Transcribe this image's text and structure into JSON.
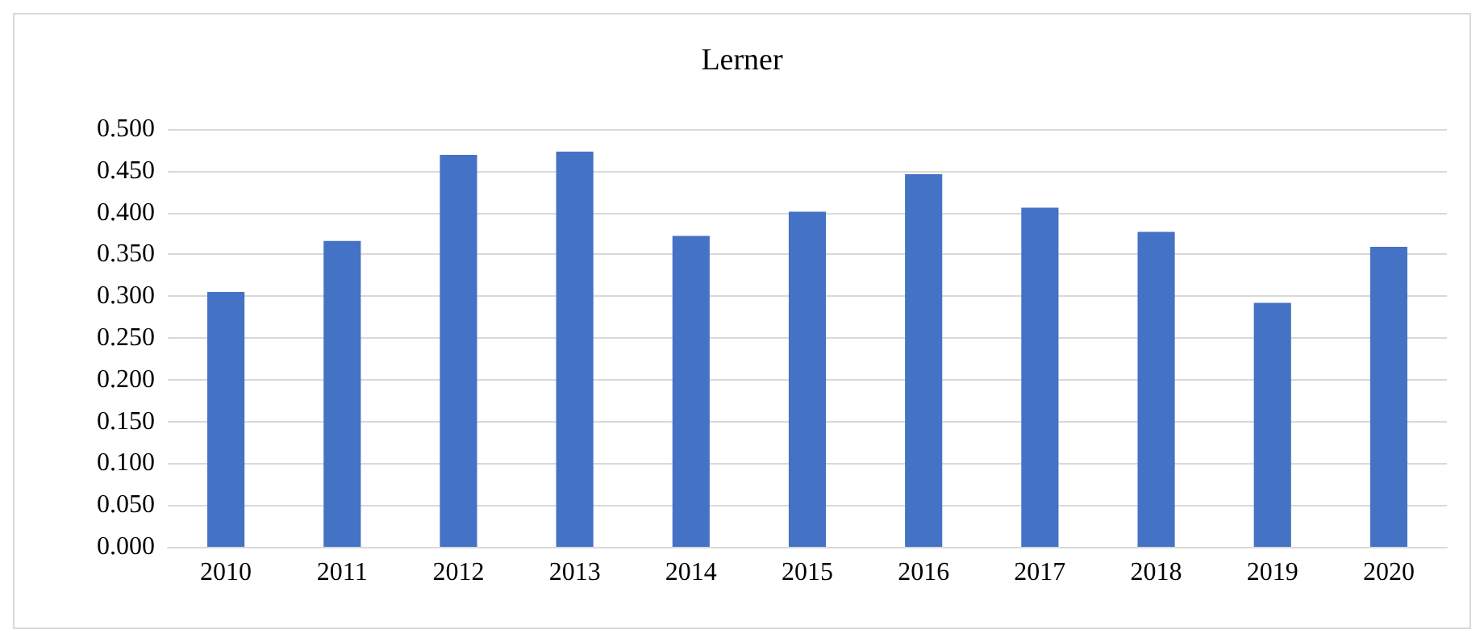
{
  "chart_data": {
    "type": "bar",
    "title": "Lerner",
    "categories": [
      "2010",
      "2011",
      "2012",
      "2013",
      "2014",
      "2015",
      "2016",
      "2017",
      "2018",
      "2019",
      "2020"
    ],
    "values": [
      0.305,
      0.366,
      0.469,
      0.473,
      0.372,
      0.401,
      0.446,
      0.406,
      0.377,
      0.292,
      0.359
    ],
    "color": "#4472c4",
    "ylim": [
      0,
      0.5
    ],
    "yticks": [
      {
        "value": 0,
        "label": "0.000"
      },
      {
        "value": 0.05,
        "label": "0.050"
      },
      {
        "value": 0.1,
        "label": "0.100"
      },
      {
        "value": 0.15,
        "label": "0.150"
      },
      {
        "value": 0.2,
        "label": "0.200"
      },
      {
        "value": 0.25,
        "label": "0.250"
      },
      {
        "value": 0.3,
        "label": "0.300"
      },
      {
        "value": 0.35,
        "label": "0.350"
      },
      {
        "value": 0.4,
        "label": "0.400"
      },
      {
        "value": 0.45,
        "label": "0.450"
      },
      {
        "value": 0.5,
        "label": "0.500"
      }
    ],
    "grid": true
  }
}
